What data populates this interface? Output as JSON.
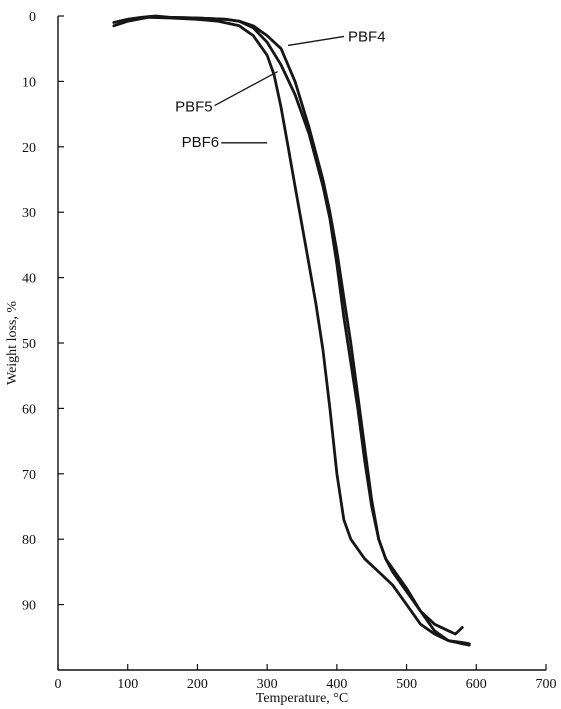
{
  "chart_data": {
    "type": "line",
    "xlabel": "Temperature, °C",
    "ylabel": "Weight loss, %",
    "xlim": [
      0,
      700
    ],
    "ylim": [
      0,
      100
    ],
    "y_inverted": true,
    "x_ticks": [
      0,
      100,
      200,
      300,
      400,
      500,
      600,
      700
    ],
    "y_ticks": [
      0,
      10,
      20,
      30,
      40,
      50,
      60,
      70,
      80,
      90
    ],
    "grid": false,
    "series": [
      {
        "name": "PBF4",
        "x": [
          80,
          100,
          120,
          140,
          160,
          200,
          240,
          260,
          280,
          300,
          320,
          340,
          360,
          380,
          390,
          400,
          410,
          420,
          430,
          440,
          450,
          460,
          470,
          480,
          500,
          520,
          540,
          560,
          570,
          580
        ],
        "y": [
          1.0,
          0.5,
          0.2,
          0.0,
          0.2,
          0.3,
          0.5,
          0.8,
          1.5,
          3.0,
          5.0,
          10.0,
          17.0,
          25.0,
          30.0,
          36.0,
          43.0,
          50.0,
          58.0,
          66.0,
          74.0,
          80.0,
          83.0,
          85.0,
          88.0,
          91.0,
          93.0,
          94.0,
          94.5,
          93.5
        ]
      },
      {
        "name": "PBF5",
        "x": [
          90,
          110,
          130,
          150,
          200,
          240,
          260,
          280,
          300,
          320,
          340,
          360,
          380,
          390,
          400,
          410,
          420,
          430,
          440,
          450,
          460,
          470,
          480,
          500,
          520,
          540,
          560,
          580,
          590
        ],
        "y": [
          1.0,
          0.5,
          0.1,
          0.2,
          0.3,
          0.5,
          0.8,
          1.8,
          4.0,
          7.5,
          12.0,
          18.0,
          26.0,
          31.0,
          38.0,
          46.0,
          53.0,
          60.0,
          68.0,
          75.0,
          80.0,
          83.0,
          84.5,
          87.5,
          91.0,
          94.0,
          95.5,
          96.0,
          96.2
        ]
      },
      {
        "name": "PBF6",
        "x": [
          80,
          100,
          130,
          160,
          200,
          230,
          260,
          280,
          300,
          310,
          320,
          330,
          340,
          350,
          360,
          370,
          380,
          390,
          400,
          410,
          420,
          440,
          460,
          480,
          500,
          520,
          540,
          560,
          580,
          590
        ],
        "y": [
          1.5,
          0.8,
          0.2,
          0.3,
          0.5,
          0.8,
          1.5,
          3.0,
          6.0,
          9.0,
          14.0,
          20.0,
          26.0,
          32.0,
          38.0,
          44.0,
          51.0,
          60.0,
          70.0,
          77.0,
          80.0,
          83.0,
          85.0,
          87.0,
          90.0,
          93.0,
          94.5,
          95.5,
          95.8,
          96.0
        ]
      }
    ],
    "labels": [
      {
        "text": "PBF4",
        "series": "PBF4",
        "x": 330,
        "y": 4.5,
        "label_side": "right-above"
      },
      {
        "text": "PBF5",
        "series": "PBF5",
        "x": 315,
        "y": 8.5,
        "label_side": "left-below"
      },
      {
        "text": "PBF6",
        "series": "PBF6",
        "x": 300,
        "y": 20.0,
        "label_side": "left"
      }
    ]
  }
}
